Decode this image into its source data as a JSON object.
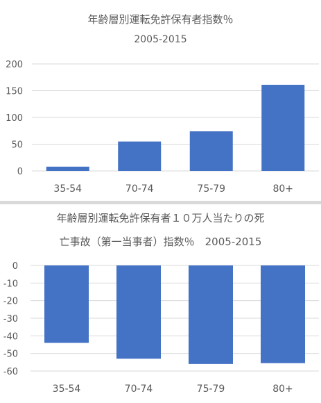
{
  "chart_data": [
    {
      "type": "bar",
      "title": "年齢層別運転免許保有者指数％",
      "subtitle": "2005-2015",
      "categories": [
        "35-54",
        "70-74",
        "75-79",
        "80+"
      ],
      "values": [
        8,
        55,
        74,
        161
      ],
      "ylim": [
        0,
        200
      ],
      "yticks": [
        0,
        50,
        100,
        150,
        200
      ],
      "grid": true,
      "bar_color": "#4472C4"
    },
    {
      "type": "bar",
      "title_line1": "年齢層別運転免許保有者１０万人当たりの死",
      "title_line2": "亡事故（第一当事者）指数％　2005-2015",
      "categories": [
        "35-54",
        "70-74",
        "75-79",
        "80+"
      ],
      "values": [
        -44,
        -53,
        -56,
        -55.5
      ],
      "ylim": [
        -60,
        0
      ],
      "yticks": [
        0,
        -10,
        -20,
        -30,
        -40,
        -50,
        -60
      ],
      "grid": true,
      "bar_color": "#4472C4"
    }
  ]
}
